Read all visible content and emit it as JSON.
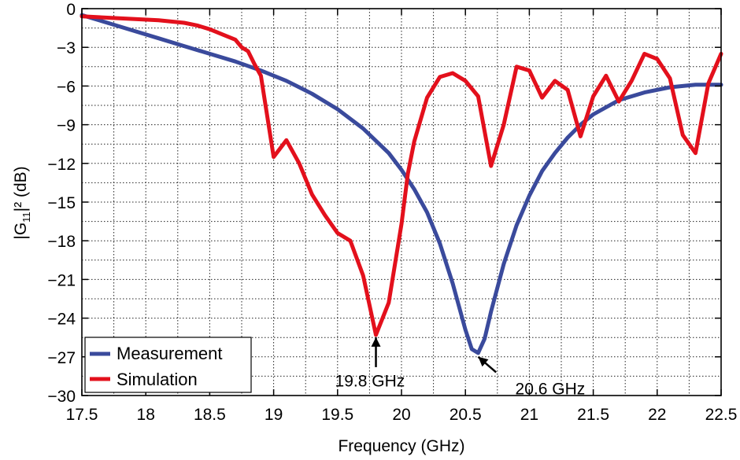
{
  "chart_data": {
    "type": "line",
    "title": "",
    "xlabel": "Frequency (GHz)",
    "ylabel_main": "|G",
    "ylabel_sub": "11",
    "ylabel_rest": "|² (dB)",
    "ylabel": "|G11|² (dB)",
    "xlim": [
      17.5,
      22.5
    ],
    "ylim": [
      -30,
      0
    ],
    "xticks": [
      17.5,
      18,
      18.5,
      19,
      19.5,
      20,
      20.5,
      21,
      21.5,
      22,
      22.5
    ],
    "xtick_labels": [
      "17.5",
      "18",
      "18.5",
      "19",
      "19.5",
      "20",
      "20.5",
      "21",
      "21.5",
      "22",
      "22.5"
    ],
    "yticks": [
      0,
      -3,
      -6,
      -9,
      -12,
      -15,
      -18,
      -21,
      -24,
      -27,
      -30
    ],
    "ytick_labels": [
      "0",
      "−3",
      "−6",
      "−9",
      "−12",
      "−15",
      "−18",
      "−21",
      "−24",
      "−27",
      "−30"
    ],
    "grid": true,
    "grid_minor_x": 0.25,
    "grid_minor_y": 1.5,
    "legend_position": "lower left",
    "series": [
      {
        "name": "Measurement",
        "color": "#3a4a9c",
        "x": [
          17.5,
          17.7,
          17.9,
          18.1,
          18.3,
          18.5,
          18.7,
          18.9,
          19.1,
          19.3,
          19.5,
          19.7,
          19.9,
          20.0,
          20.1,
          20.2,
          20.3,
          20.4,
          20.5,
          20.55,
          20.6,
          20.65,
          20.7,
          20.8,
          20.9,
          21.0,
          21.1,
          21.2,
          21.3,
          21.4,
          21.5,
          21.7,
          21.9,
          22.1,
          22.3,
          22.5
        ],
        "y": [
          -0.5,
          -1.1,
          -1.7,
          -2.3,
          -2.9,
          -3.5,
          -4.1,
          -4.8,
          -5.6,
          -6.6,
          -7.8,
          -9.3,
          -11.2,
          -12.5,
          -14.0,
          -15.8,
          -18.2,
          -21.3,
          -24.9,
          -26.4,
          -26.7,
          -25.6,
          -23.5,
          -19.8,
          -16.8,
          -14.5,
          -12.6,
          -11.2,
          -10.0,
          -9.0,
          -8.2,
          -7.1,
          -6.5,
          -6.1,
          -5.9,
          -5.9
        ]
      },
      {
        "name": "Simulation",
        "color": "#e3101c",
        "x": [
          17.5,
          17.7,
          17.9,
          18.1,
          18.3,
          18.4,
          18.5,
          18.6,
          18.7,
          18.75,
          18.8,
          18.85,
          18.9,
          19.0,
          19.1,
          19.2,
          19.3,
          19.4,
          19.5,
          19.6,
          19.7,
          19.8,
          19.9,
          20.0,
          20.05,
          20.1,
          20.2,
          20.3,
          20.4,
          20.5,
          20.6,
          20.7,
          20.8,
          20.9,
          21.0,
          21.1,
          21.2,
          21.3,
          21.4,
          21.5,
          21.6,
          21.7,
          21.8,
          21.9,
          22.0,
          22.1,
          22.2,
          22.3,
          22.4,
          22.5
        ],
        "y": [
          -0.6,
          -0.7,
          -0.8,
          -0.9,
          -1.1,
          -1.3,
          -1.6,
          -2.0,
          -2.4,
          -3.0,
          -3.3,
          -4.3,
          -5.2,
          -11.5,
          -10.2,
          -12.0,
          -14.4,
          -16.0,
          -17.4,
          -18.0,
          -20.7,
          -25.3,
          -22.8,
          -16.7,
          -12.8,
          -10.3,
          -6.9,
          -5.3,
          -5.0,
          -5.6,
          -6.8,
          -12.2,
          -9.0,
          -4.5,
          -4.8,
          -6.9,
          -5.6,
          -6.3,
          -9.9,
          -6.8,
          -5.2,
          -7.2,
          -5.6,
          -3.5,
          -3.9,
          -5.4,
          -9.8,
          -11.2,
          -5.8,
          -3.5
        ]
      }
    ],
    "annotations": [
      {
        "text": "19.8 GHz",
        "x": 19.8,
        "y": -25.3,
        "label_x": 19.48,
        "label_y": -29.3,
        "arrow_from": [
          19.8,
          -27.8
        ],
        "arrow_to": [
          19.8,
          -25.3
        ]
      },
      {
        "text": "20.6 GHz",
        "x": 20.6,
        "y": -26.7,
        "label_x": 20.89,
        "label_y": -29.9,
        "arrow_from": [
          20.74,
          -28.2
        ],
        "arrow_to": [
          20.6,
          -27.0
        ]
      }
    ]
  },
  "legend": {
    "items": [
      {
        "label": "Measurement",
        "color": "#3a4a9c"
      },
      {
        "label": "Simulation",
        "color": "#e3101c"
      }
    ]
  }
}
